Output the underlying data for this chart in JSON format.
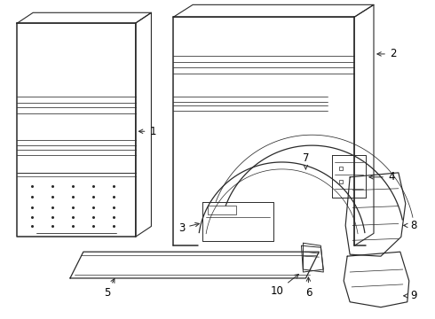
{
  "bg_color": "#ffffff",
  "line_color": "#2a2a2a",
  "label_color": "#000000",
  "lw_main": 0.9,
  "lw_thin": 0.5,
  "label_fs": 8.5
}
